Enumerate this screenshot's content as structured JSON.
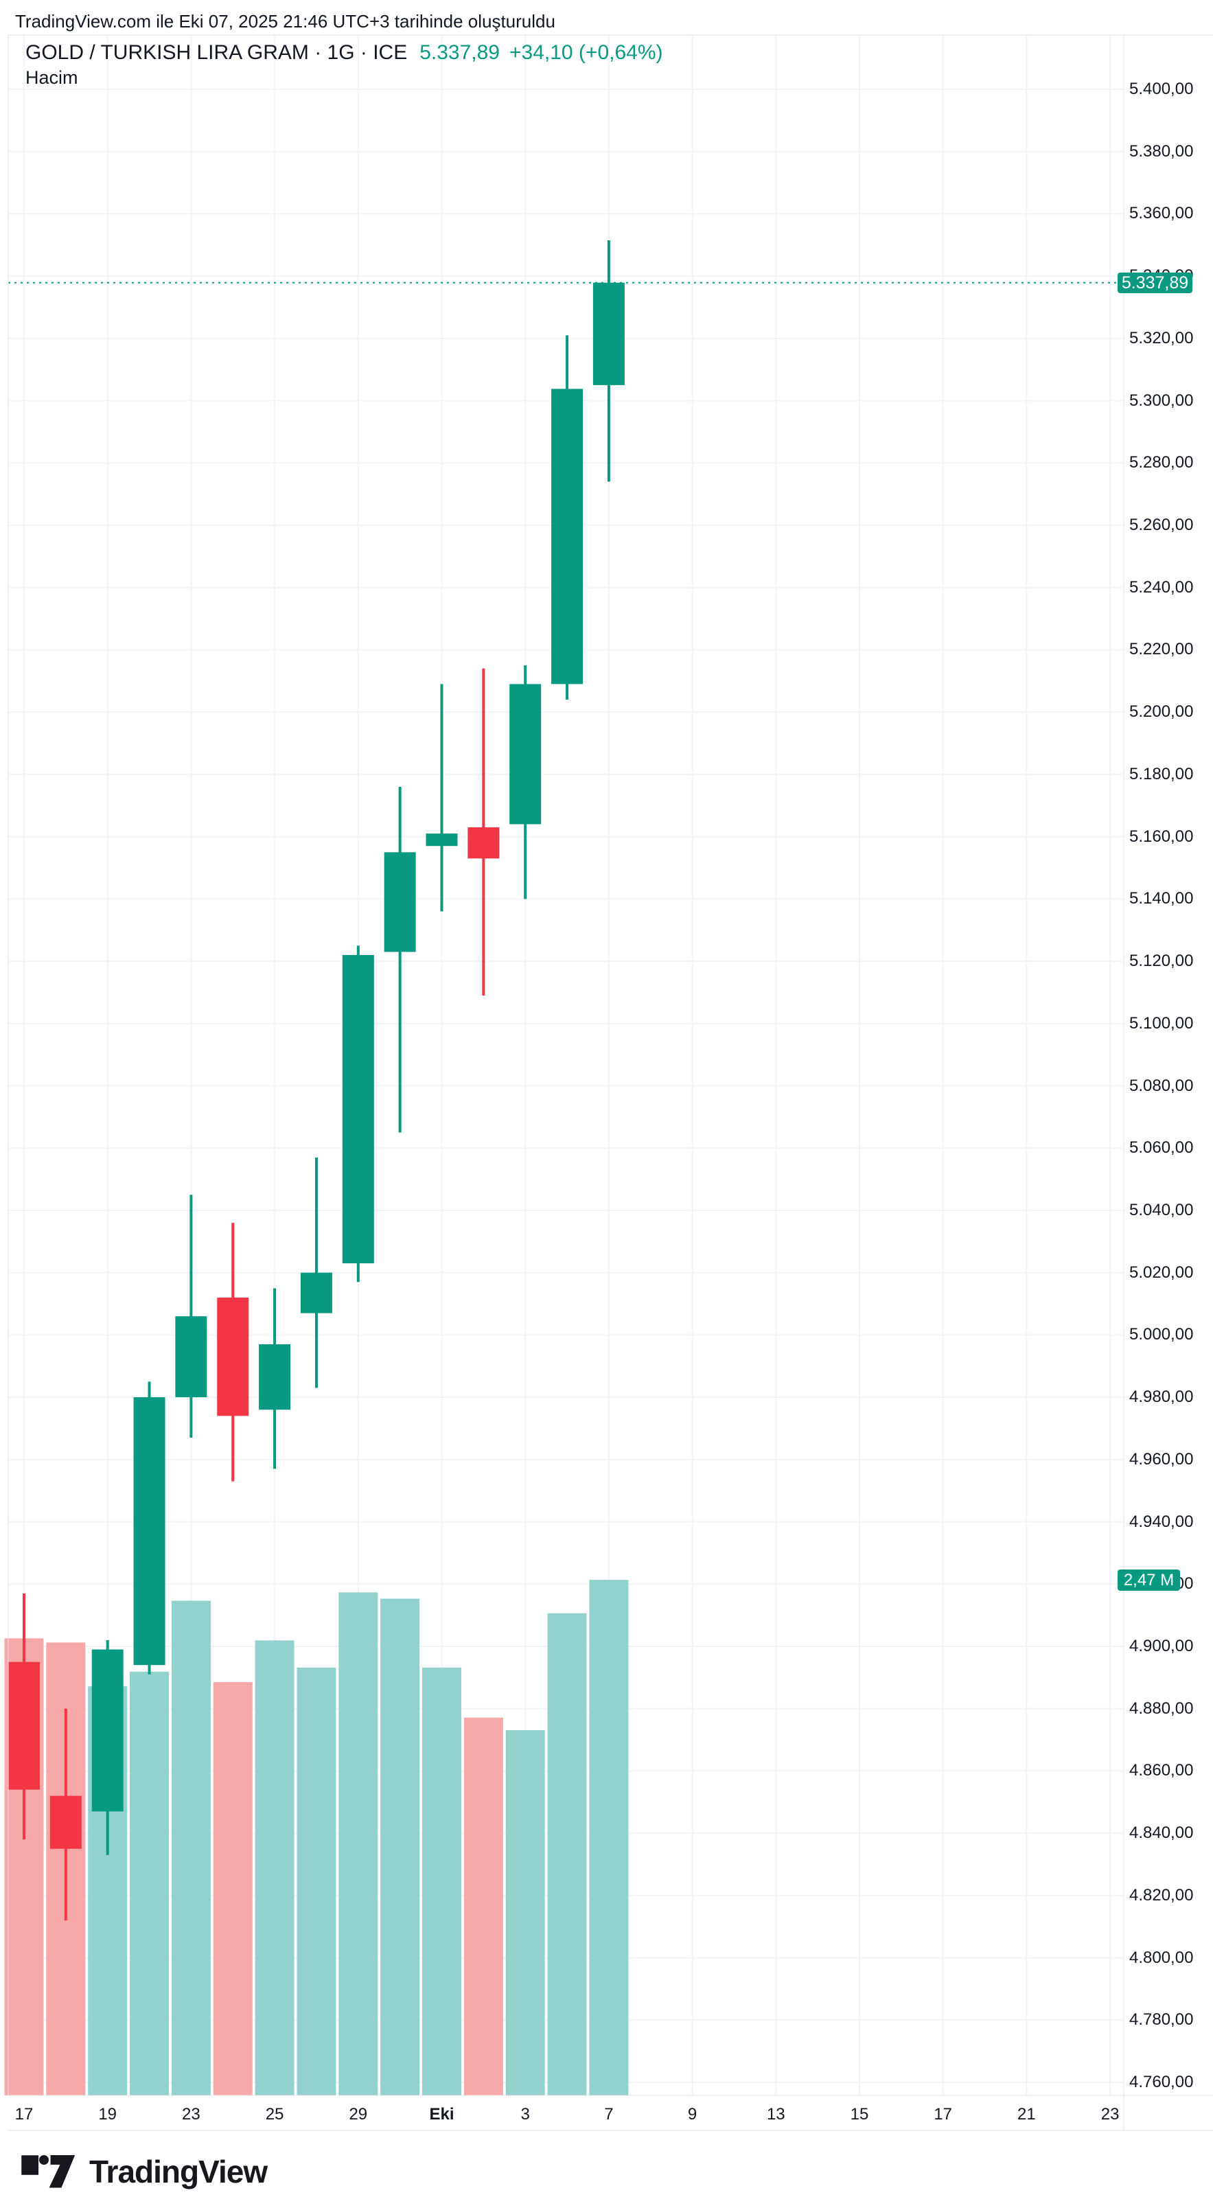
{
  "header": {
    "generated_text": "TradingView.com ile Eki 07, 2025 21:46 UTC+3 tarihinde oluşturuldu"
  },
  "chart": {
    "title": "GOLD / TURKISH LIRA GRAM · 1G · ICE",
    "price_text": "5.337,89",
    "change_text": "+34,10 (+0,64%)",
    "indicator_label": "Hacim",
    "price_badge": "5.337,89",
    "volume_badge": "2,47 M"
  },
  "footer": {
    "brand": "TradingView"
  },
  "colors": {
    "up": "#089981",
    "down": "#f23645",
    "volume_up": "#92d2cc",
    "volume_down": "#f7a8a8",
    "grid": "#f2f4f7",
    "border": "#e0e3eb",
    "text": "#131722",
    "last_price_line": "#089981",
    "badge_bg": "#089981"
  },
  "chart_data": {
    "type": "candlestick_with_volume",
    "title": "GOLD / TURKISH LIRA GRAM · 1G · ICE",
    "interval": "1G",
    "last_price": 5337.89,
    "change": 34.1,
    "change_pct": 0.64,
    "volume_label": "2,47 M",
    "grid": true,
    "price_axis": {
      "min": 4760,
      "max": 5400,
      "step": 20,
      "label_format": "#.###,00"
    },
    "x_axis": {
      "labels": [
        {
          "text": "17",
          "bold": false
        },
        {
          "text": "19",
          "bold": false
        },
        {
          "text": "23",
          "bold": false
        },
        {
          "text": "25",
          "bold": false
        },
        {
          "text": "29",
          "bold": false
        },
        {
          "text": "Eki",
          "bold": true
        },
        {
          "text": "3",
          "bold": false
        },
        {
          "text": "7",
          "bold": false
        },
        {
          "text": "9",
          "bold": false
        },
        {
          "text": "13",
          "bold": false
        },
        {
          "text": "15",
          "bold": false
        },
        {
          "text": "17",
          "bold": false
        },
        {
          "text": "21",
          "bold": false
        },
        {
          "text": "23",
          "bold": false
        }
      ],
      "bars_per_label": 2
    },
    "bars": [
      {
        "x_label": "17",
        "open": 4895,
        "high": 4917,
        "low": 4838,
        "close": 4854,
        "volume_m": 2.19
      },
      {
        "x_label": "18",
        "open": 4852,
        "high": 4880,
        "low": 4812,
        "close": 4835,
        "volume_m": 2.17
      },
      {
        "x_label": "19",
        "open": 4847,
        "high": 4902,
        "low": 4833,
        "close": 4899,
        "volume_m": 1.96
      },
      {
        "x_label": "22",
        "open": 4894,
        "high": 4985,
        "low": 4891,
        "close": 4980,
        "volume_m": 2.03
      },
      {
        "x_label": "23",
        "open": 4980,
        "high": 5045,
        "low": 4967,
        "close": 5006,
        "volume_m": 2.37
      },
      {
        "x_label": "24",
        "open": 5012,
        "high": 5036,
        "low": 4953,
        "close": 4974,
        "volume_m": 1.98
      },
      {
        "x_label": "25",
        "open": 4976,
        "high": 5015,
        "low": 4957,
        "close": 4997,
        "volume_m": 2.18
      },
      {
        "x_label": "26",
        "open": 5007,
        "high": 5057,
        "low": 4983,
        "close": 5020,
        "volume_m": 2.05
      },
      {
        "x_label": "29",
        "open": 5023,
        "high": 5125,
        "low": 5017,
        "close": 5122,
        "volume_m": 2.41
      },
      {
        "x_label": "30",
        "open": 5123,
        "high": 5176,
        "low": 5065,
        "close": 5155,
        "volume_m": 2.38
      },
      {
        "x_label": "Eki 1",
        "open": 5157,
        "high": 5209,
        "low": 5136,
        "close": 5161,
        "volume_m": 2.05
      },
      {
        "x_label": "2",
        "open": 5163,
        "high": 5214,
        "low": 5109,
        "close": 5153,
        "volume_m": 1.81
      },
      {
        "x_label": "3",
        "open": 5164,
        "high": 5215,
        "low": 5140,
        "close": 5209,
        "volume_m": 1.75
      },
      {
        "x_label": "6",
        "open": 5209,
        "high": 5321,
        "low": 5204,
        "close": 5303.79,
        "volume_m": 2.31
      },
      {
        "x_label": "7",
        "open": 5305,
        "high": 5351.5,
        "low": 5274,
        "close": 5337.89,
        "volume_m": 2.47
      }
    ]
  }
}
